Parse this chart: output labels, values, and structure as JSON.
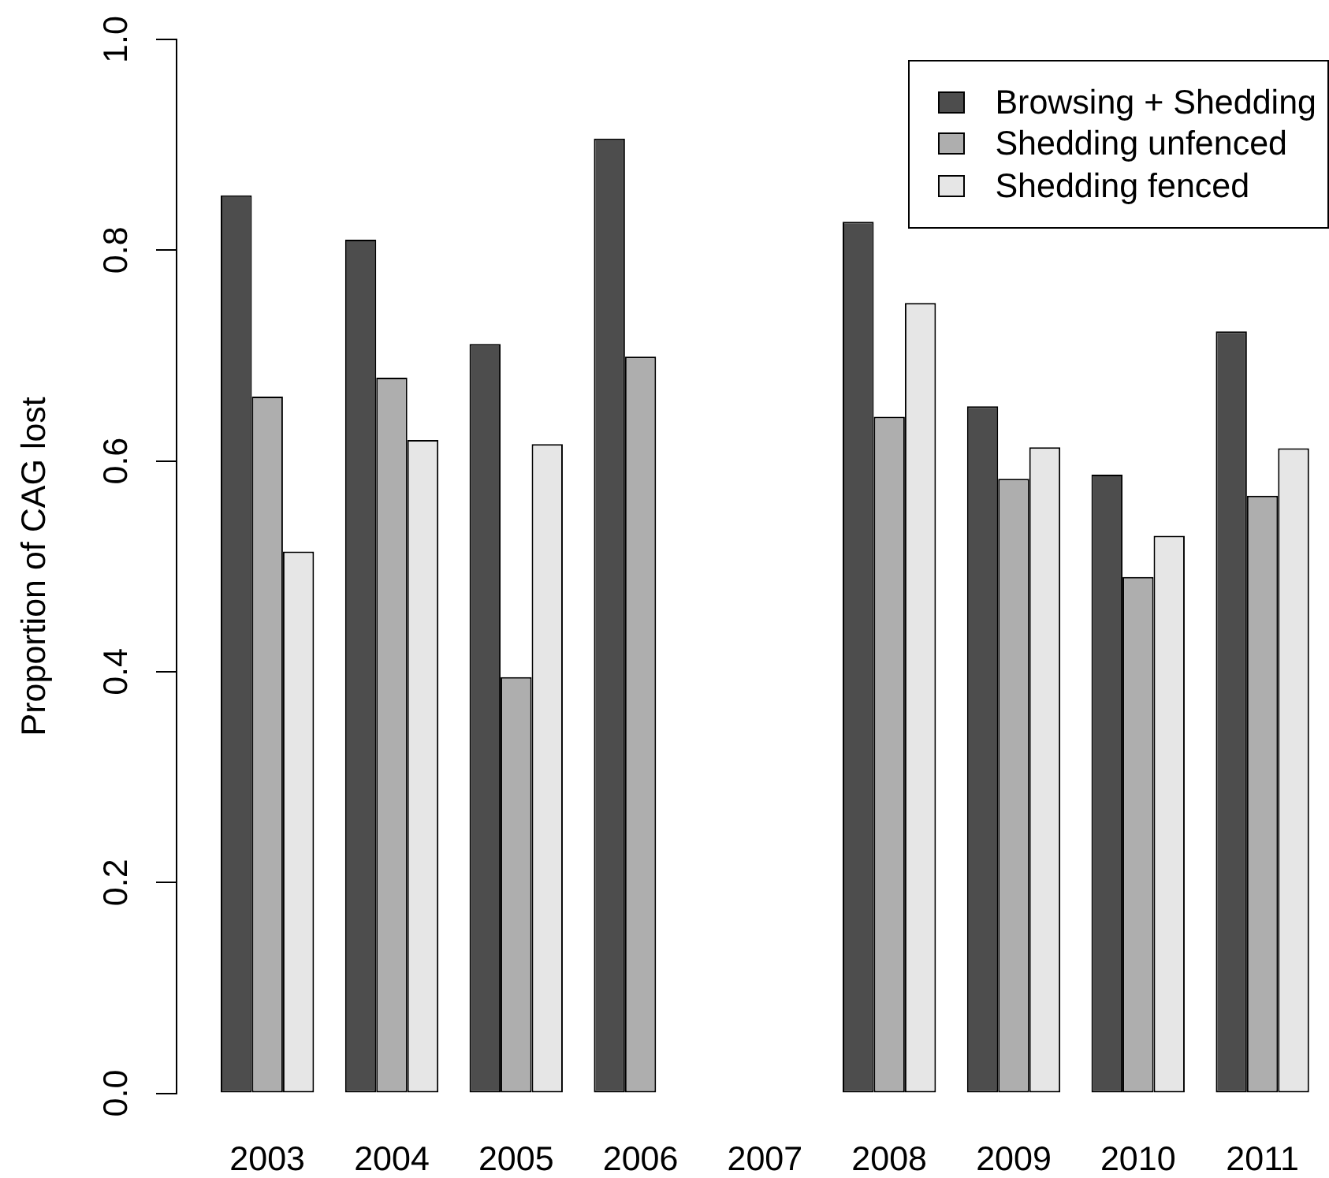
{
  "chart_data": {
    "type": "bar",
    "ylabel": "Proportion of CAG lost",
    "categories": [
      "2003",
      "2004",
      "2005",
      "2006",
      "2007",
      "2008",
      "2009",
      "2010",
      "2011"
    ],
    "series": [
      {
        "name": "Browsing + Shedding",
        "color": "#4d4d4d",
        "values": [
          0.852,
          0.81,
          0.711,
          0.906,
          null,
          0.827,
          0.652,
          0.587,
          0.723
        ]
      },
      {
        "name": "Shedding unfenced",
        "color": "#aeaeae",
        "values": [
          0.661,
          0.679,
          0.395,
          0.699,
          null,
          0.642,
          0.583,
          0.49,
          0.567
        ]
      },
      {
        "name": "Shedding fenced",
        "color": "#e6e6e6",
        "values": [
          0.514,
          0.62,
          0.616,
          null,
          null,
          0.75,
          0.613,
          0.529,
          0.612
        ]
      }
    ],
    "ylim": [
      0,
      1
    ],
    "yticks": [
      {
        "value": 0,
        "label": "0.0"
      },
      0.2,
      0.4,
      0.6,
      0.8,
      {
        "value": 1,
        "label": "1.0"
      }
    ],
    "grid": false,
    "legend": "top right"
  }
}
